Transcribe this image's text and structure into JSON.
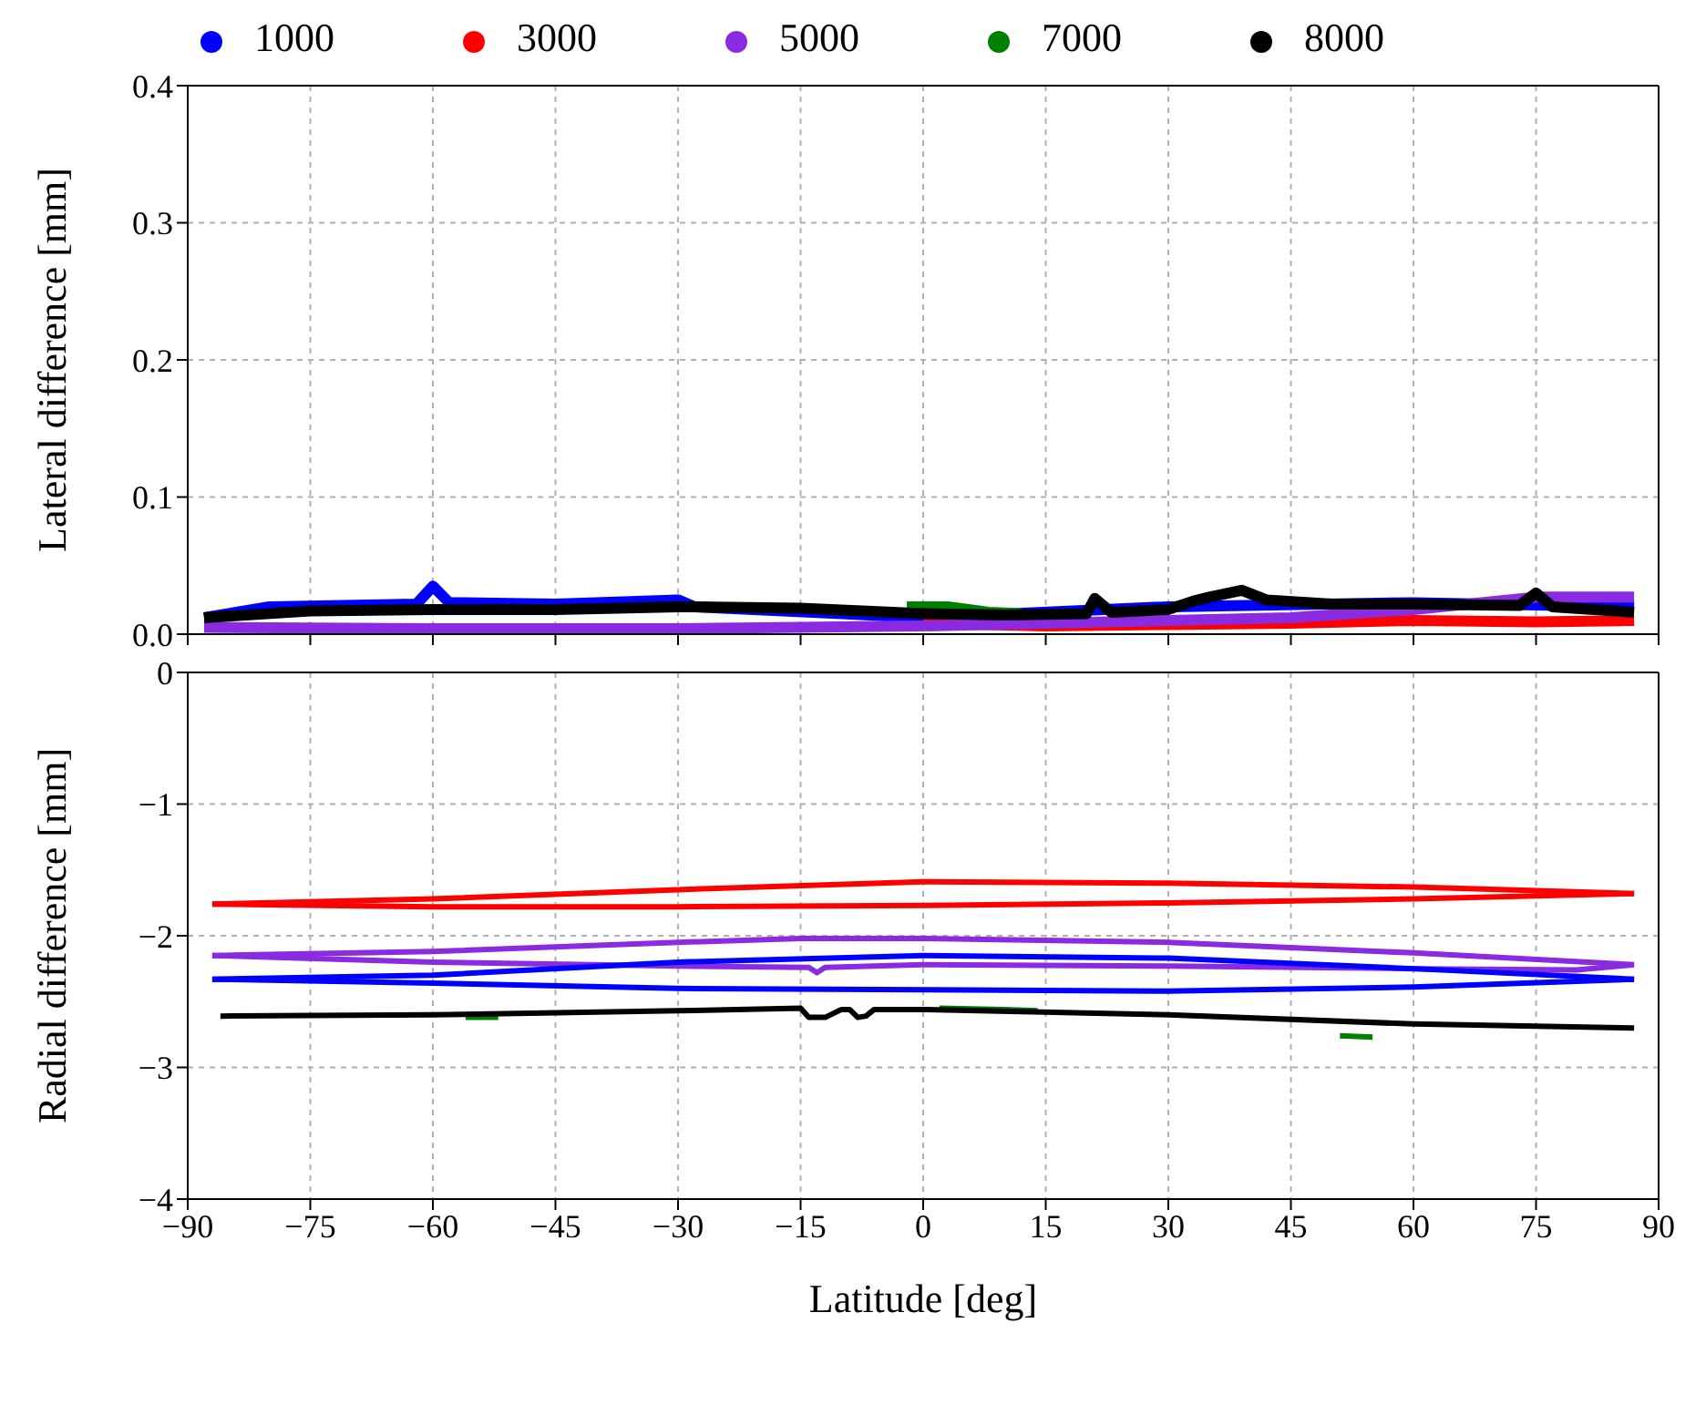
{
  "chart_data": [
    {
      "type": "line",
      "ylabel": "Lateral difference [mm]",
      "xlim": [
        -90,
        90
      ],
      "xticks": [
        -90,
        -75,
        -60,
        -45,
        -30,
        -15,
        0,
        15,
        30,
        45,
        60,
        75,
        90
      ],
      "ylim": [
        0,
        0.4
      ],
      "yticks": [
        {
          "value": 0,
          "label": "0.0"
        },
        0.1,
        0.2,
        0.3,
        0.4
      ],
      "grid": true,
      "legend": "top",
      "tick_labels": "y",
      "marker": "none",
      "line_style": "solid",
      "series": [
        {
          "name": "1000",
          "color": "#0000ff",
          "x": [
            -88,
            -80,
            -62,
            -60,
            -58,
            -45,
            -30,
            -28,
            -10,
            0,
            30,
            60,
            87
          ],
          "values": [
            0.012,
            0.02,
            0.022,
            0.035,
            0.023,
            0.022,
            0.025,
            0.02,
            0.015,
            0.012,
            0.02,
            0.023,
            0.02
          ]
        },
        {
          "name": "3000",
          "color": "#ff0000",
          "x": [
            0,
            15,
            30,
            45,
            60,
            75,
            87
          ],
          "values": [
            0.008,
            0.006,
            0.007,
            0.008,
            0.01,
            0.009,
            0.01
          ]
        },
        {
          "name": "5000",
          "color": "#8a2be2",
          "x": [
            -88,
            -60,
            -30,
            0,
            30,
            45,
            60,
            75,
            87
          ],
          "values": [
            0.005,
            0.004,
            0.004,
            0.006,
            0.01,
            0.012,
            0.018,
            0.027,
            0.027
          ]
        },
        {
          "name": "7000",
          "color": "#008000",
          "x": [
            -2,
            3,
            8,
            12
          ],
          "values": [
            0.02,
            0.02,
            0.016,
            0.015
          ]
        },
        {
          "name": "8000",
          "color": "#000000",
          "x": [
            -88,
            -75,
            -60,
            -45,
            -30,
            -15,
            0,
            10,
            20,
            21,
            23,
            30,
            33,
            35,
            39,
            42,
            50,
            60,
            73,
            75,
            77,
            87
          ],
          "values": [
            0.012,
            0.017,
            0.018,
            0.018,
            0.02,
            0.019,
            0.015,
            0.014,
            0.015,
            0.026,
            0.016,
            0.018,
            0.024,
            0.027,
            0.032,
            0.025,
            0.022,
            0.022,
            0.021,
            0.03,
            0.02,
            0.016
          ]
        }
      ]
    },
    {
      "type": "line",
      "xlabel": "Latitude [deg]",
      "ylabel": "Radial difference [mm]",
      "xlim": [
        -90,
        90
      ],
      "xticks": [
        -90,
        -75,
        -60,
        -45,
        -30,
        -15,
        0,
        15,
        30,
        45,
        60,
        75,
        90
      ],
      "ylim": [
        -4,
        0
      ],
      "yticks": [
        -4,
        -3,
        -2,
        -1,
        0
      ],
      "grid": true,
      "marker": "none",
      "line_style": "solid",
      "series": [
        {
          "color": "#ff0000",
          "x": [
            -87,
            -60,
            -30,
            0,
            30,
            60,
            87
          ],
          "values": [
            -1.76,
            -1.72,
            -1.65,
            -1.59,
            -1.6,
            -1.63,
            -1.68
          ]
        },
        {
          "color": "#ff0000",
          "x": [
            -87,
            -60,
            -30,
            0,
            30,
            60,
            87
          ],
          "values": [
            -1.76,
            -1.78,
            -1.78,
            -1.77,
            -1.75,
            -1.72,
            -1.68
          ]
        },
        {
          "color": "#8a2be2",
          "x": [
            -87,
            -60,
            -30,
            -15,
            0,
            30,
            60,
            87
          ],
          "values": [
            -2.15,
            -2.12,
            -2.05,
            -2.02,
            -2.02,
            -2.05,
            -2.13,
            -2.22
          ]
        },
        {
          "color": "#8a2be2",
          "x": [
            -87,
            -60,
            -30,
            -14,
            -13,
            -12,
            0,
            30,
            60,
            80,
            87
          ],
          "values": [
            -2.15,
            -2.2,
            -2.23,
            -2.24,
            -2.28,
            -2.24,
            -2.22,
            -2.23,
            -2.25,
            -2.26,
            -2.22
          ]
        },
        {
          "color": "#0000ff",
          "x": [
            -87,
            -60,
            -30,
            0,
            30,
            60,
            87
          ],
          "values": [
            -2.33,
            -2.3,
            -2.2,
            -2.15,
            -2.17,
            -2.25,
            -2.33
          ]
        },
        {
          "color": "#0000ff",
          "x": [
            -87,
            -60,
            -30,
            0,
            30,
            60,
            87
          ],
          "values": [
            -2.33,
            -2.36,
            -2.4,
            -2.41,
            -2.42,
            -2.39,
            -2.33
          ]
        },
        {
          "color": "#008000",
          "x": [
            -56,
            -52,
            -50,
            2,
            10,
            14,
            20,
            51,
            55
          ],
          "values": [
            -2.62,
            -2.62,
            null,
            -2.55,
            -2.56,
            -2.57,
            null,
            -2.76,
            -2.77
          ]
        },
        {
          "color": "#000000",
          "x": [
            -86,
            -60,
            -30,
            -15,
            -14,
            -12,
            -10,
            -9,
            -8,
            -7,
            -6,
            0,
            30,
            60,
            87
          ],
          "values": [
            -2.61,
            -2.6,
            -2.57,
            -2.55,
            -2.62,
            -2.62,
            -2.56,
            -2.56,
            -2.62,
            -2.61,
            -2.56,
            -2.56,
            -2.6,
            -2.67,
            -2.7
          ]
        }
      ]
    }
  ]
}
